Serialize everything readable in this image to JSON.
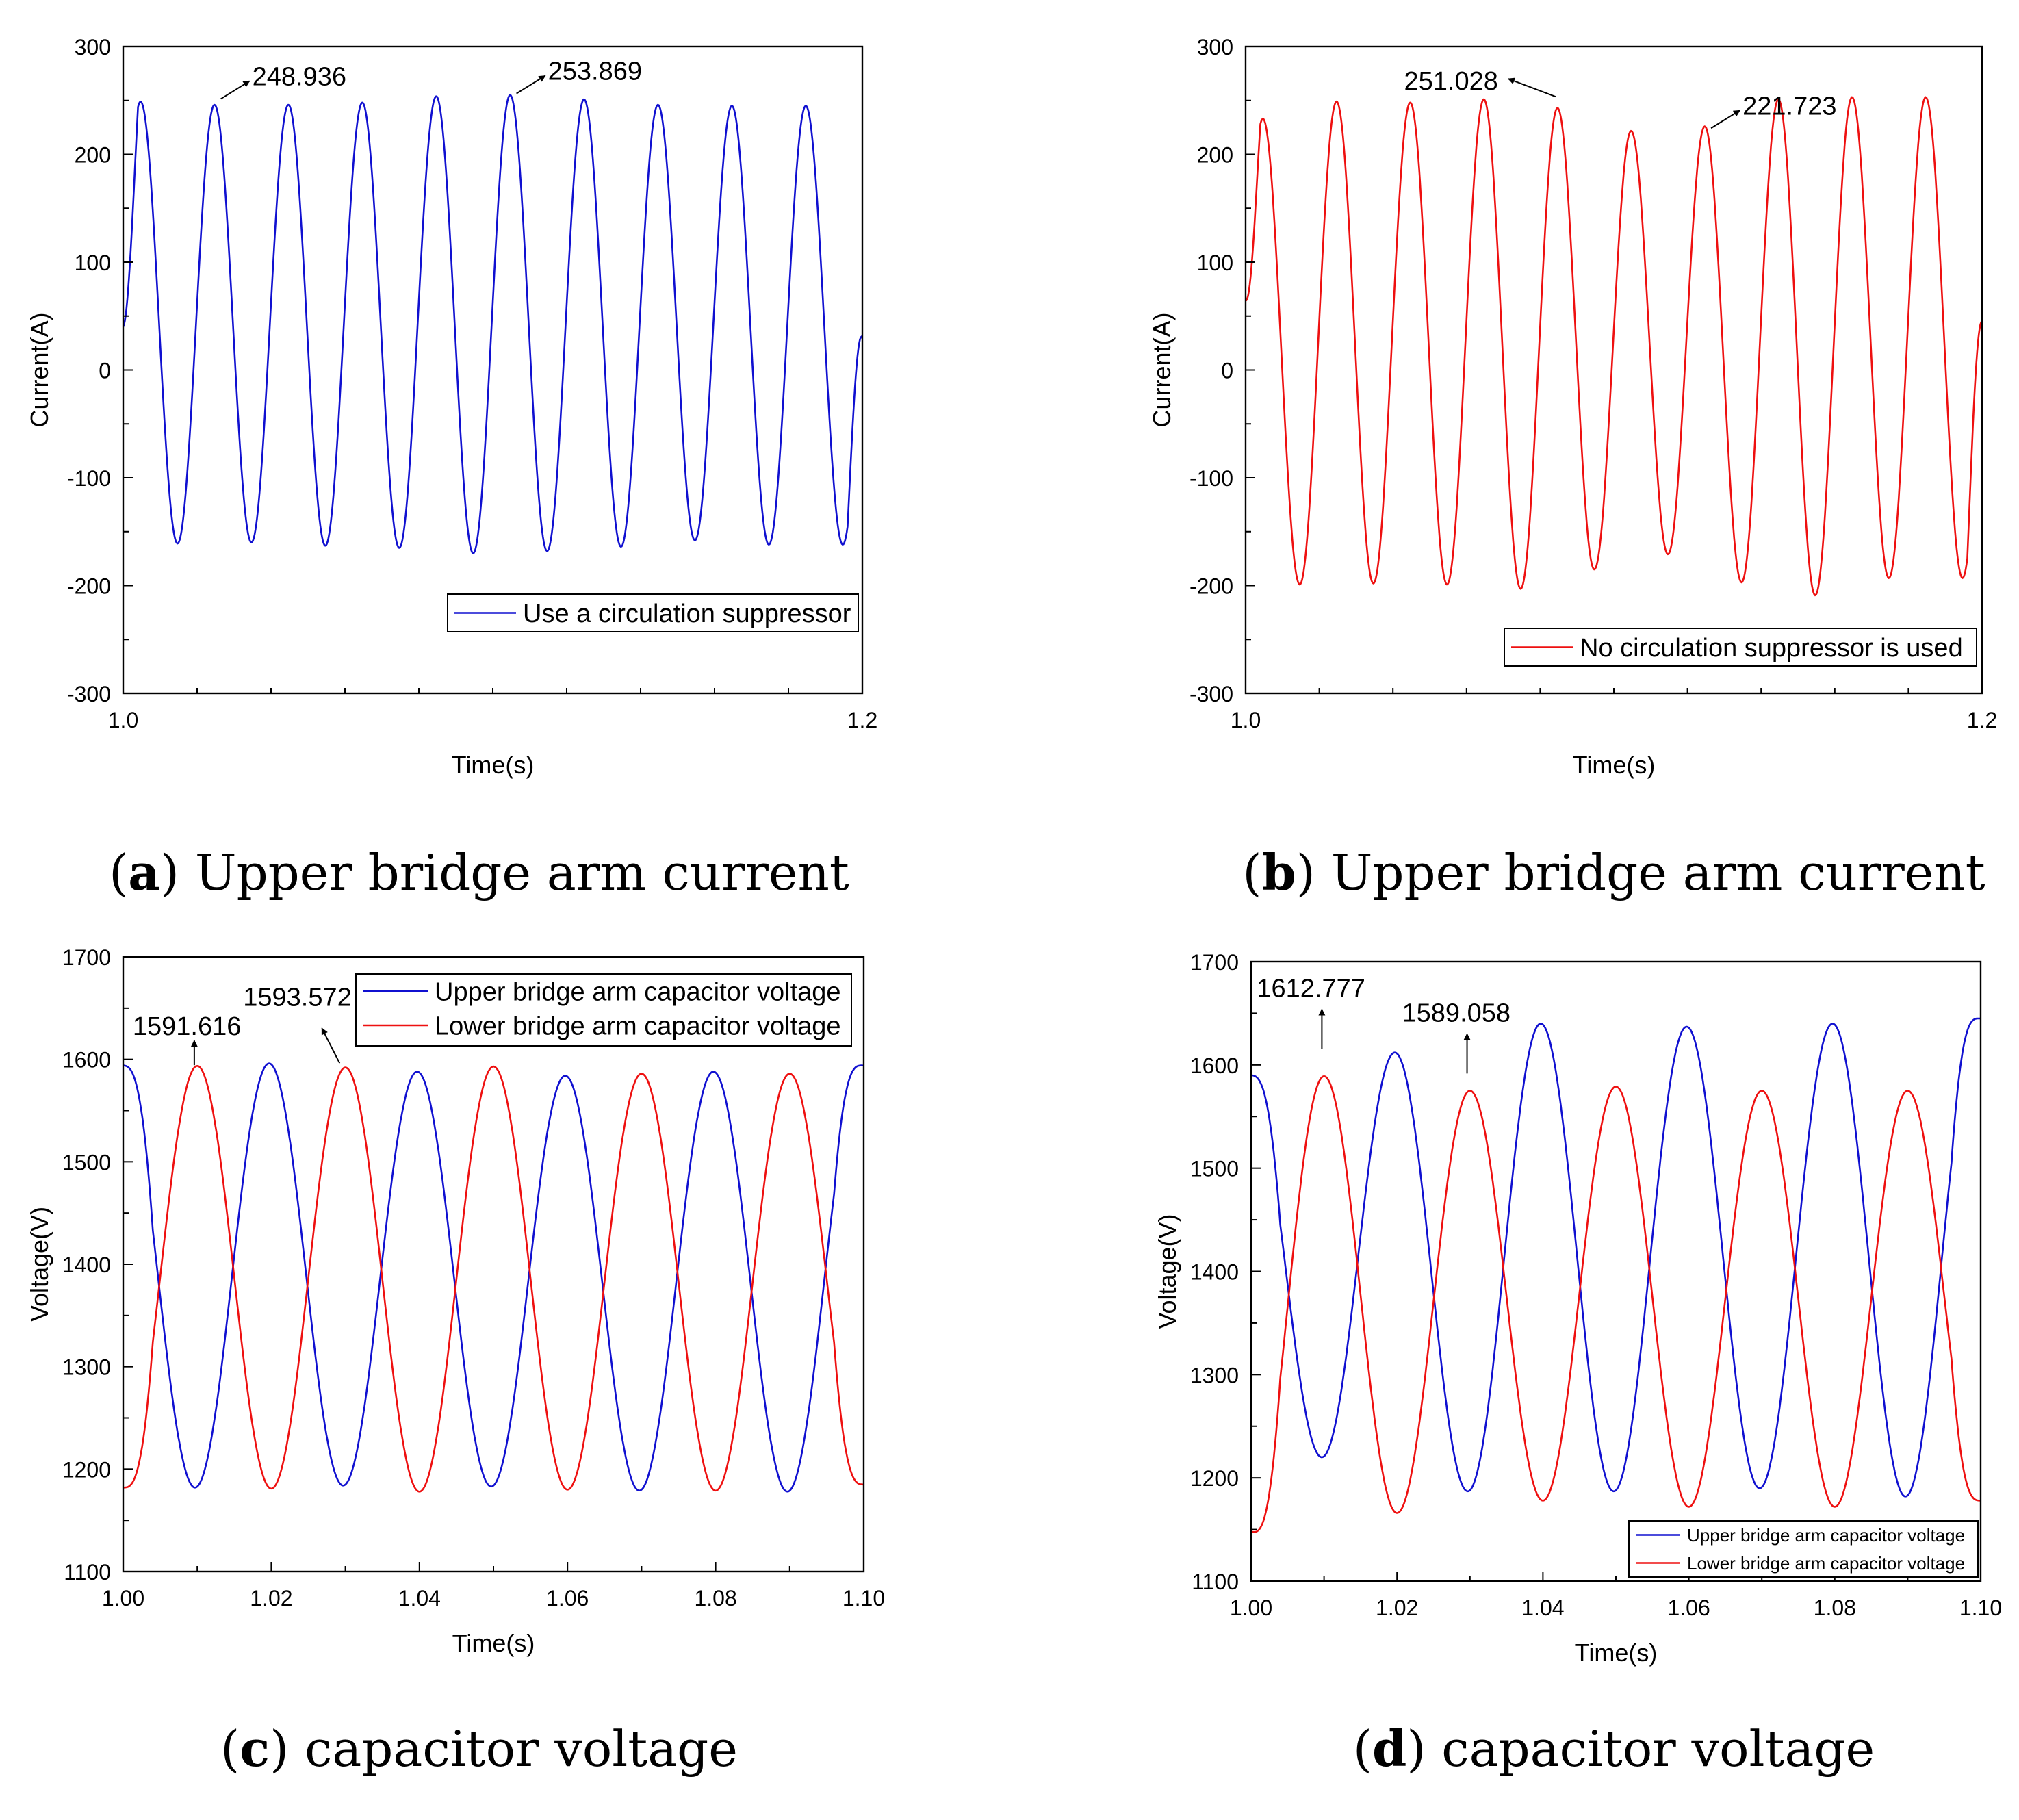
{
  "chart_data": [
    {
      "panel": "a",
      "type": "line",
      "caption": {
        "letter": "a",
        "text": "Upper bridge arm current"
      },
      "xlabel": "Time(s)",
      "ylabel": "Current(A)",
      "xlim": [
        1.0,
        1.2
      ],
      "ylim": [
        -300,
        300
      ],
      "xticks": [
        {
          "v": 1.0,
          "label": "1.0"
        },
        {
          "v": 1.2,
          "label": "1.2"
        }
      ],
      "yticks": [
        {
          "v": 300,
          "label": "300"
        },
        {
          "v": 200,
          "label": "200"
        },
        {
          "v": 100,
          "label": "100"
        },
        {
          "v": 0,
          "label": "0"
        },
        {
          "v": -100,
          "label": "-100"
        },
        {
          "v": -200,
          "label": "-200"
        },
        {
          "v": -300,
          "label": "-300"
        }
      ],
      "legend_position": "bottom-right",
      "grid": false,
      "series": [
        {
          "name": "Use a circulation suppressor",
          "color": "#1010d0",
          "wave": {
            "t0": 0.9847,
            "period": 0.02,
            "maxes": [
              251,
              248.936,
              246,
              246,
              248,
              253.869,
              255,
              251,
              246,
              245
            ],
            "mins": [
              -165,
              -161,
              -160,
              -163,
              -165,
              -170,
              -168,
              -164,
              -158,
              -162
            ],
            "start": [
              1.0,
              40
            ],
            "end": [
              1.2,
              30
            ]
          }
        }
      ],
      "annotations": [
        {
          "text": "248.936",
          "x": 1.0253,
          "y": 248.936,
          "placement": "arrow-right"
        },
        {
          "text": "253.869",
          "x": 1.1053,
          "y": 253.869,
          "placement": "arrow-right"
        }
      ]
    },
    {
      "panel": "b",
      "type": "line",
      "caption": {
        "letter": "b",
        "text": "Upper bridge arm current"
      },
      "xlabel": "Time(s)",
      "ylabel": "Current(A)",
      "xlim": [
        1.0,
        1.2
      ],
      "ylim": [
        -300,
        300
      ],
      "xticks": [
        {
          "v": 1.0,
          "label": "1.0"
        },
        {
          "v": 1.2,
          "label": "1.2"
        }
      ],
      "yticks": [
        {
          "v": 300,
          "label": "300"
        },
        {
          "v": 200,
          "label": "200"
        },
        {
          "v": 100,
          "label": "100"
        },
        {
          "v": 0,
          "label": "0"
        },
        {
          "v": -100,
          "label": "-100"
        },
        {
          "v": -200,
          "label": "-200"
        },
        {
          "v": -300,
          "label": "-300"
        }
      ],
      "legend_position": "bottom-right",
      "grid": false,
      "series": [
        {
          "name": "No circulation suppressor is used",
          "color": "#ee1010",
          "wave": {
            "t0": 0.9847,
            "period": 0.02,
            "maxes": [
              216,
              233,
              249,
              248,
              251.028,
              243,
              221.723,
              226,
              251,
              253
            ],
            "mins": [
              -178,
              -199,
              -198,
              -199,
              -203,
              -185,
              -171,
              -197,
              -209,
              -193
            ],
            "start": [
              1.0,
              65
            ],
            "end": [
              1.2,
              45
            ]
          }
        }
      ],
      "annotations": [
        {
          "text": "251.028",
          "x": 1.0853,
          "y": 251.028,
          "placement": "arrow-left"
        },
        {
          "text": "221.723",
          "x": 1.1253,
          "y": 221.723,
          "placement": "arrow-right"
        }
      ]
    },
    {
      "panel": "c",
      "type": "line",
      "caption": {
        "letter": "c",
        "text": "capacitor voltage"
      },
      "xlabel": "Time(s)",
      "ylabel": "Voltage(V)",
      "xlim": [
        1.0,
        1.1
      ],
      "ylim": [
        1100,
        1700
      ],
      "xticks": [
        {
          "v": 1.0,
          "label": "1.00"
        },
        {
          "v": 1.02,
          "label": "1.02"
        },
        {
          "v": 1.04,
          "label": "1.04"
        },
        {
          "v": 1.06,
          "label": "1.06"
        },
        {
          "v": 1.08,
          "label": "1.08"
        },
        {
          "v": 1.1,
          "label": "1.10"
        }
      ],
      "yticks": [
        {
          "v": 1700,
          "label": "1700"
        },
        {
          "v": 1600,
          "label": "1600"
        },
        {
          "v": 1500,
          "label": "1500"
        },
        {
          "v": 1400,
          "label": "1400"
        },
        {
          "v": 1300,
          "label": "1300"
        },
        {
          "v": 1200,
          "label": "1200"
        },
        {
          "v": 1100,
          "label": "1100"
        }
      ],
      "legend_position": "top-right",
      "grid": false,
      "series": [
        {
          "name": "Upper bridge arm capacitor voltage",
          "color": "#1010d0",
          "wave": {
            "t0": 0.9997,
            "period": 0.02,
            "maxes": [
              1594,
              1596,
              1588,
              1584,
              1588,
              1594
            ],
            "mins": [
              1182,
              1184,
              1183,
              1179,
              1178
            ],
            "start": [
              1.0,
              1594
            ],
            "end": [
              1.1,
              1594
            ]
          }
        },
        {
          "name": "Lower bridge arm capacitor voltage",
          "color": "#ee1010",
          "wave": {
            "t0": 0.99,
            "period": 0.02,
            "maxes": [
              1591.616,
              1593.572,
              1592,
              1593,
              1586
            ],
            "mins": [
              1182,
              1181,
              1178,
              1180,
              1179,
              1185
            ],
            "start": [
              1.0,
              1182
            ],
            "end": [
              1.1,
              1185
            ]
          }
        }
      ],
      "annotations": [
        {
          "text": "1591.616",
          "x": 1.0096,
          "y": 1591.616,
          "placement": "arrow-up"
        },
        {
          "text": "1593.572",
          "x": 1.0296,
          "y": 1593.572,
          "placement": "arrow-up"
        }
      ]
    },
    {
      "panel": "d",
      "type": "line",
      "caption": {
        "letter": "d",
        "text": "capacitor voltage"
      },
      "xlabel": "Time(s)",
      "ylabel": "Voltage(V)",
      "xlim": [
        1.0,
        1.1
      ],
      "ylim": [
        1100,
        1700
      ],
      "xticks": [
        {
          "v": 1.0,
          "label": "1.00"
        },
        {
          "v": 1.02,
          "label": "1.02"
        },
        {
          "v": 1.04,
          "label": "1.04"
        },
        {
          "v": 1.06,
          "label": "1.06"
        },
        {
          "v": 1.08,
          "label": "1.08"
        },
        {
          "v": 1.1,
          "label": "1.10"
        }
      ],
      "yticks": [
        {
          "v": 1700,
          "label": "1700"
        },
        {
          "v": 1600,
          "label": "1600"
        },
        {
          "v": 1500,
          "label": "1500"
        },
        {
          "v": 1400,
          "label": "1400"
        },
        {
          "v": 1300,
          "label": "1300"
        },
        {
          "v": 1200,
          "label": "1200"
        },
        {
          "v": 1100,
          "label": "1100"
        }
      ],
      "legend_position": "bottom-right",
      "grid": false,
      "series": [
        {
          "name": "Upper bridge arm capacitor voltage",
          "color": "#1010d0",
          "wave": {
            "t0": 0.9997,
            "period": 0.02,
            "maxes": [
              1590,
              1612,
              1640,
              1637,
              1640,
              1645
            ],
            "mins": [
              1220,
              1187,
              1187,
              1190,
              1182
            ],
            "start": [
              1.0,
              1590
            ],
            "end": [
              1.1,
              1645
            ]
          }
        },
        {
          "name": "Lower bridge arm capacitor voltage",
          "color": "#ee1010",
          "wave": {
            "t0": 0.99,
            "period": 0.02,
            "maxes": [
              1612.777,
              1589.058,
              1575,
              1579,
              1575
            ],
            "mins": [
              1142,
              1166,
              1178,
              1172,
              1172,
              1178
            ],
            "start": [
              1.0,
              1148
            ],
            "end": [
              1.1,
              1178
            ]
          }
        }
      ],
      "annotations": [
        {
          "text": "1612.777",
          "x": 1.0097,
          "y": 1612.777,
          "placement": "arrow-up"
        },
        {
          "text": "1589.058",
          "x": 1.0296,
          "y": 1589.058,
          "placement": "arrow-up"
        }
      ]
    }
  ]
}
